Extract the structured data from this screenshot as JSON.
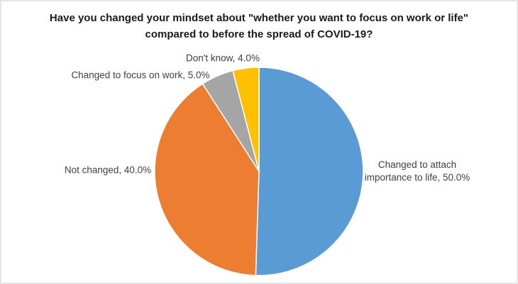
{
  "title": {
    "line1": "Have you changed your mindset about \"whether you want to focus on work or life\"",
    "line2": "compared to before the spread of COVID-19?"
  },
  "chart_data": {
    "type": "pie",
    "title": "Have you changed your mindset about \"whether you want to focus on work or life\" compared to before the spread of COVID-19?",
    "unit": "%",
    "start_angle_deg": 0,
    "direction": "clockwise",
    "legend": "none",
    "label_position": "outside-end",
    "slices": [
      {
        "label": "Changed to attach importance to life",
        "value": 50.0,
        "display": "Changed to attach importance to life, 50.0%",
        "color": "#5B9BD5"
      },
      {
        "label": "Not changed",
        "value": 40.0,
        "display": "Not changed, 40.0%",
        "color": "#ED7D31"
      },
      {
        "label": "Changed to focus on work",
        "value": 5.0,
        "display": "Changed to focus on work, 5.0%",
        "color": "#A5A5A5"
      },
      {
        "label": "Don't know",
        "value": 4.0,
        "display": "Don't know, 4.0%",
        "color": "#FFC000"
      }
    ],
    "slice_border_color": "#FFFFFF"
  }
}
